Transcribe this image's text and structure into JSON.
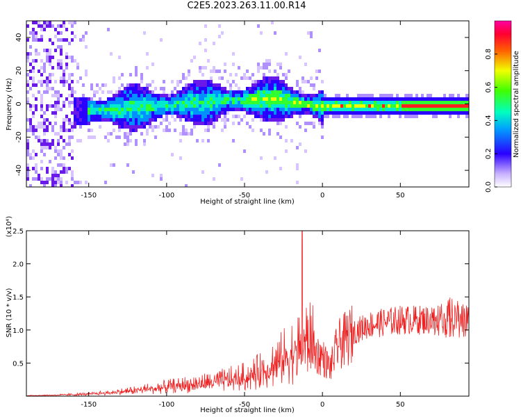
{
  "title": "C2E5.2023.263.11.00.R14",
  "chart_data": [
    {
      "type": "heatmap",
      "xlabel": "Height of straight line (km)",
      "ylabel": "Frequency (Hz)",
      "xlim": [
        -190,
        94
      ],
      "ylim": [
        -50,
        50
      ],
      "x_ticks": [
        -150,
        -100,
        -50,
        0,
        50
      ],
      "y_ticks": [
        -40,
        -20,
        0,
        20,
        40
      ],
      "colorbar": {
        "label": "Normalized spectral amplitude",
        "range": [
          0,
          1
        ],
        "ticks": [
          "0.0",
          "0.2",
          "0.4",
          "0.6",
          "0.8"
        ]
      },
      "ridge": {
        "x": [
          -160,
          -150,
          -140,
          -130,
          -120,
          -110,
          -100,
          -90,
          -80,
          -70,
          -60,
          -50,
          -40,
          -30,
          -20,
          -10,
          0,
          10,
          20,
          30,
          40,
          50,
          60,
          70,
          80,
          94
        ],
        "y": [
          -5,
          -4,
          -4,
          -3,
          -2,
          -2,
          -1,
          0,
          1,
          1,
          2,
          2,
          3,
          3,
          1,
          0,
          -2,
          -1,
          -1,
          -1,
          -1,
          -1,
          -1,
          -1,
          -1,
          -1
        ]
      },
      "colors": [
        "#ffffff",
        "#d8c4ff",
        "#7a2cf0",
        "#2a00ff",
        "#00c8ff",
        "#00ff40",
        "#ffe000",
        "#ff2020"
      ]
    },
    {
      "type": "line",
      "xlabel": "Height of straight line (km)",
      "ylabel": "SNR (10 * v/v)",
      "y_scale_label": "(x10⁴)",
      "xlim": [
        -190,
        94
      ],
      "ylim": [
        0,
        2.5
      ],
      "x_ticks": [
        -150,
        -100,
        -50,
        0,
        50
      ],
      "y_ticks": [
        0.5,
        1.0,
        1.5,
        2.0,
        2.5
      ],
      "color": "#ee2222",
      "envelope": {
        "x": [
          -190,
          -170,
          -150,
          -130,
          -110,
          -90,
          -70,
          -50,
          -40,
          -30,
          -20,
          -10,
          0,
          5,
          10,
          20,
          30,
          40,
          50,
          60,
          70,
          80,
          94
        ],
        "y": [
          0.01,
          0.02,
          0.04,
          0.08,
          0.14,
          0.2,
          0.26,
          0.35,
          0.45,
          0.6,
          0.8,
          1.0,
          0.85,
          0.6,
          1.1,
          1.35,
          1.5,
          1.55,
          1.6,
          1.6,
          1.6,
          1.62,
          1.62
        ]
      },
      "spikes": [
        {
          "x": -13,
          "y": 2.5
        }
      ]
    }
  ]
}
